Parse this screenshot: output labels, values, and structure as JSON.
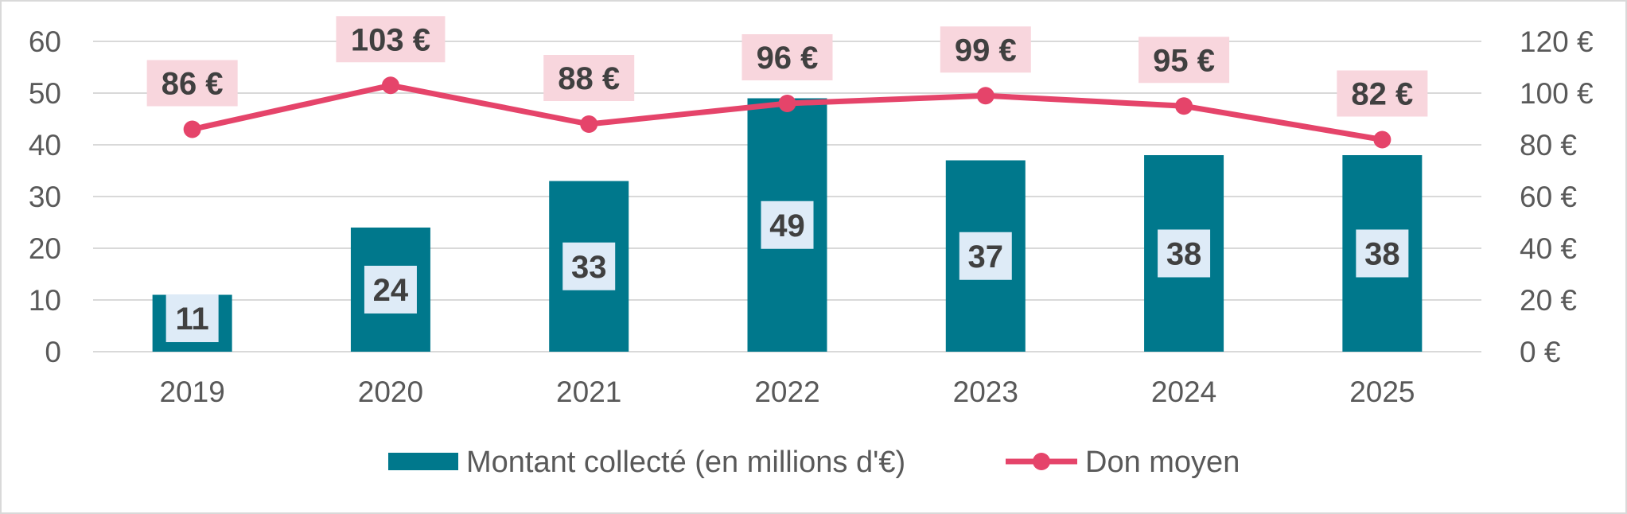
{
  "chart_data": {
    "type": "bar",
    "categories": [
      "2019",
      "2020",
      "2021",
      "2022",
      "2023",
      "2024",
      "2025"
    ],
    "series": [
      {
        "name": "Montant collecté (en millions d'€)",
        "type": "bar",
        "axis": "left",
        "color": "#00788c",
        "values": [
          11,
          24,
          33,
          49,
          37,
          38,
          38
        ],
        "labels": [
          "11",
          "24",
          "33",
          "49",
          "37",
          "38",
          "38"
        ]
      },
      {
        "name": "Don moyen",
        "type": "line",
        "axis": "right",
        "color": "#e5446a",
        "values": [
          86,
          103,
          88,
          96,
          99,
          95,
          82
        ],
        "labels": [
          "86 €",
          "103 €",
          "88 €",
          "96 €",
          "99 €",
          "95 €",
          "82 €"
        ]
      }
    ],
    "y_left": {
      "min": 0,
      "max": 60,
      "ticks": [
        "0",
        "10",
        "20",
        "30",
        "40",
        "50",
        "60"
      ]
    },
    "y_right": {
      "min": 0,
      "max": 120,
      "ticks": [
        "0 €",
        "20 €",
        "40 €",
        "60 €",
        "80 €",
        "100 €",
        "120 €"
      ]
    },
    "grid": true,
    "legend_position": "bottom",
    "bar_label_bg": "#deebf7",
    "line_label_bg": "#f8d6dd",
    "grid_color": "#d9d9d9"
  }
}
